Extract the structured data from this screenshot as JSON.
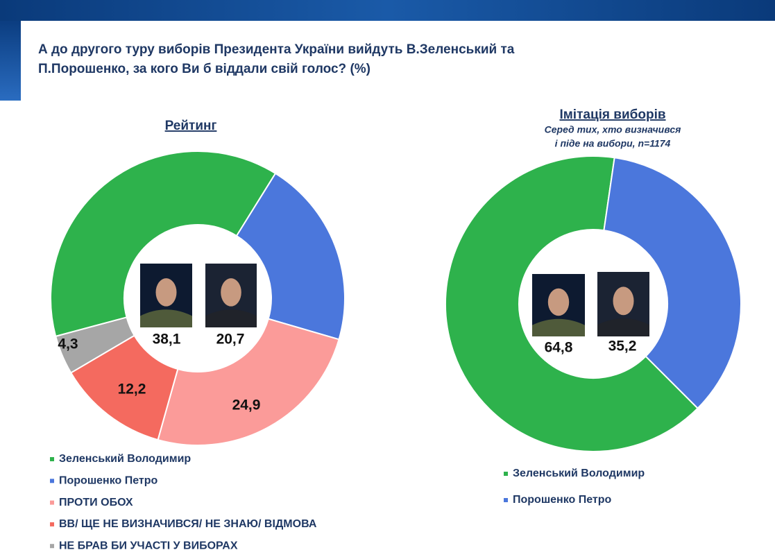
{
  "title": [
    "А до другого туру виборів Президента України вийдуть В.Зеленський та",
    "П.Порошенко, за кого Ви б віддали свій голос? (%)"
  ],
  "chart_data": [
    {
      "type": "donut",
      "title": "Рейтинг",
      "categories": [
        "Зеленський Володимир",
        "Порошенко Петро",
        "ПРОТИ ОБОХ",
        "ВВ/ ЩЕ НЕ ВИЗНАЧИВСЯ/ НЕ ЗНАЮ/ ВІДМОВА",
        "НЕ БРАВ БИ УЧАСТІ У ВИБОРАХ"
      ],
      "values": [
        38.1,
        20.7,
        24.9,
        12.2,
        4.3
      ],
      "value_labels": [
        "38,1",
        "20,7",
        "24,9",
        "12,2",
        "4,3"
      ],
      "colors": [
        "#2eb24c",
        "#4b77dc",
        "#fb9b99",
        "#f46a5f",
        "#a6a6a6"
      ]
    },
    {
      "type": "donut",
      "title": "Імітація виборів",
      "subtitle": [
        "Серед тих, хто визначився",
        "і піде на вибори, n=1174"
      ],
      "categories": [
        "Зеленський Володимир",
        "Порошенко Петро"
      ],
      "values": [
        64.8,
        35.2
      ],
      "value_labels": [
        "64,8",
        "35,2"
      ],
      "colors": [
        "#2eb24c",
        "#4b77dc"
      ]
    }
  ]
}
